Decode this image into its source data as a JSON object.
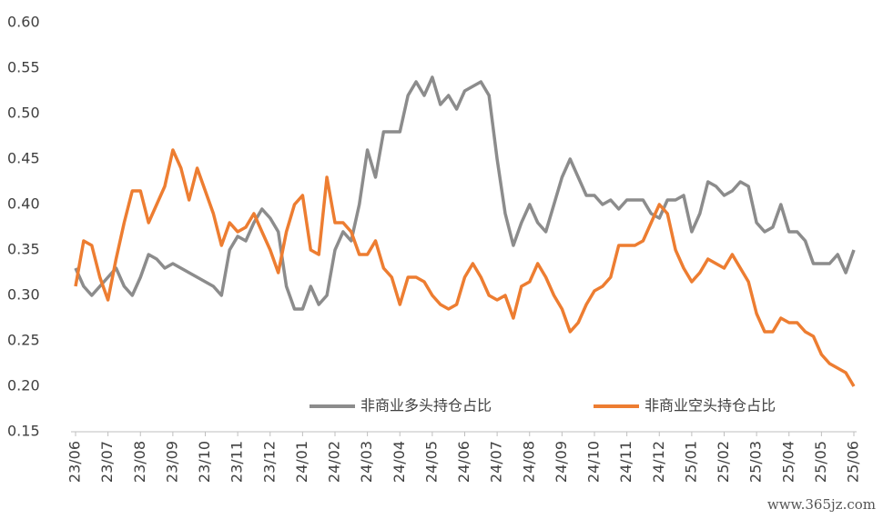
{
  "chart_data": {
    "type": "line",
    "categories": [
      "23/06",
      null,
      null,
      null,
      "23/07",
      null,
      null,
      null,
      "23/08",
      null,
      null,
      null,
      "23/09",
      null,
      null,
      null,
      "23/10",
      null,
      null,
      null,
      "23/11",
      null,
      null,
      null,
      "23/12",
      null,
      null,
      null,
      "24/01",
      null,
      null,
      null,
      "24/02",
      null,
      null,
      null,
      "24/03",
      null,
      null,
      null,
      "24/04",
      null,
      null,
      null,
      "24/05",
      null,
      null,
      null,
      "24/06",
      null,
      null,
      null,
      "24/07",
      null,
      null,
      null,
      "24/08",
      null,
      null,
      null,
      "24/09",
      null,
      null,
      null,
      "24/10",
      null,
      null,
      null,
      "24/11",
      null,
      null,
      null,
      "24/12",
      null,
      null,
      null,
      "25/01",
      null,
      null,
      null,
      "25/02",
      null,
      null,
      null,
      "25/03",
      null,
      null,
      null,
      "25/04",
      null,
      null,
      null,
      "25/05",
      null,
      null,
      null,
      "25/06"
    ],
    "series": [
      {
        "name": "非商业多头持仓占比",
        "color": "#8c8c8c",
        "values": [
          0.33,
          0.31,
          0.3,
          0.31,
          0.32,
          0.33,
          0.31,
          0.3,
          0.32,
          0.345,
          0.34,
          0.33,
          0.335,
          0.33,
          0.325,
          0.32,
          0.315,
          0.31,
          0.3,
          0.35,
          0.365,
          0.36,
          0.38,
          0.395,
          0.385,
          0.37,
          0.31,
          0.285,
          0.285,
          0.31,
          0.29,
          0.3,
          0.35,
          0.37,
          0.36,
          0.4,
          0.46,
          0.43,
          0.48,
          0.48,
          0.48,
          0.52,
          0.535,
          0.52,
          0.54,
          0.51,
          0.52,
          0.505,
          0.525,
          0.53,
          0.535,
          0.52,
          0.45,
          0.39,
          0.355,
          0.38,
          0.4,
          0.38,
          0.37,
          0.4,
          0.43,
          0.45,
          0.43,
          0.41,
          0.41,
          0.4,
          0.405,
          0.395,
          0.405,
          0.405,
          0.405,
          0.39,
          0.385,
          0.405,
          0.405,
          0.41,
          0.37,
          0.39,
          0.425,
          0.42,
          0.41,
          0.415,
          0.425,
          0.42,
          0.38,
          0.37,
          0.375,
          0.4,
          0.37,
          0.37,
          0.36,
          0.335,
          0.335,
          0.335,
          0.345,
          0.325,
          0.35
        ]
      },
      {
        "name": "非商业空头持仓占比",
        "color": "#ed7d31",
        "values": [
          0.31,
          0.36,
          0.355,
          0.32,
          0.295,
          0.34,
          0.38,
          0.415,
          0.415,
          0.38,
          0.4,
          0.42,
          0.46,
          0.44,
          0.405,
          0.44,
          0.415,
          0.39,
          0.355,
          0.38,
          0.37,
          0.375,
          0.39,
          0.37,
          0.35,
          0.325,
          0.37,
          0.4,
          0.41,
          0.35,
          0.345,
          0.43,
          0.38,
          0.38,
          0.37,
          0.345,
          0.345,
          0.36,
          0.33,
          0.32,
          0.29,
          0.32,
          0.32,
          0.315,
          0.3,
          0.29,
          0.285,
          0.29,
          0.32,
          0.335,
          0.32,
          0.3,
          0.295,
          0.3,
          0.275,
          0.31,
          0.315,
          0.335,
          0.32,
          0.3,
          0.285,
          0.26,
          0.27,
          0.29,
          0.305,
          0.31,
          0.32,
          0.355,
          0.355,
          0.355,
          0.36,
          0.38,
          0.4,
          0.39,
          0.35,
          0.33,
          0.315,
          0.325,
          0.34,
          0.335,
          0.33,
          0.345,
          0.33,
          0.315,
          0.28,
          0.26,
          0.26,
          0.275,
          0.27,
          0.27,
          0.26,
          0.255,
          0.235,
          0.225,
          0.22,
          0.215,
          0.2
        ]
      }
    ],
    "ylim": [
      0.15,
      0.6
    ],
    "yticks": [
      0.15,
      {
        "value": 0.2,
        "label": "0.20"
      },
      0.25,
      {
        "value": 0.3,
        "label": "0.30"
      },
      0.35,
      {
        "value": 0.4,
        "label": "0.40"
      },
      0.45,
      {
        "value": 0.5,
        "label": "0.50"
      },
      0.55,
      {
        "value": 0.6,
        "label": "0.60"
      }
    ],
    "grid": false,
    "legend": "lower right",
    "watermark": "www.365jz.com"
  }
}
